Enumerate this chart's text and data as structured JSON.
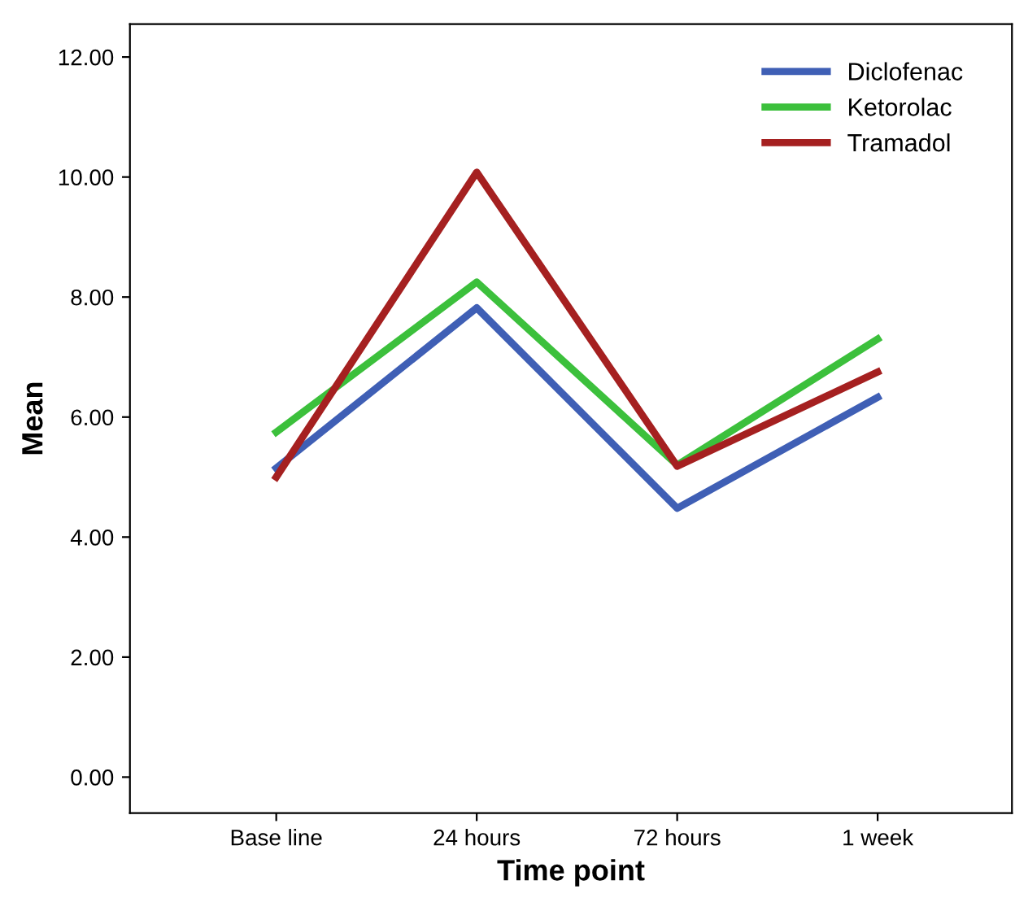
{
  "chart_data": {
    "type": "line",
    "xlabel": "Time point",
    "ylabel": "Mean",
    "categories": [
      "Base line",
      "24 hours",
      "72 hours",
      "1 week"
    ],
    "series": [
      {
        "name": "Diclofenac",
        "color": "#3f5fb5",
        "values": [
          5.15,
          7.82,
          4.48,
          6.33
        ]
      },
      {
        "name": "Ketorolac",
        "color": "#3cc03c",
        "values": [
          5.75,
          8.25,
          5.2,
          7.3
        ]
      },
      {
        "name": "Tramadol",
        "color": "#a52020",
        "values": [
          5.0,
          10.08,
          5.18,
          6.75
        ]
      }
    ],
    "ylim": [
      -0.6,
      12.55
    ],
    "yticks": [
      {
        "value": 0,
        "label": "0.00"
      },
      {
        "value": 2,
        "label": "2.00"
      },
      {
        "value": 4,
        "label": "4.00"
      },
      {
        "value": 6,
        "label": "6.00"
      },
      {
        "value": 8,
        "label": "8.00"
      },
      {
        "value": 10,
        "label": "10.00"
      },
      {
        "value": 12,
        "label": "12.00"
      }
    ],
    "grid": false,
    "legend": "top right",
    "marker": "none",
    "line_style": "solid"
  }
}
